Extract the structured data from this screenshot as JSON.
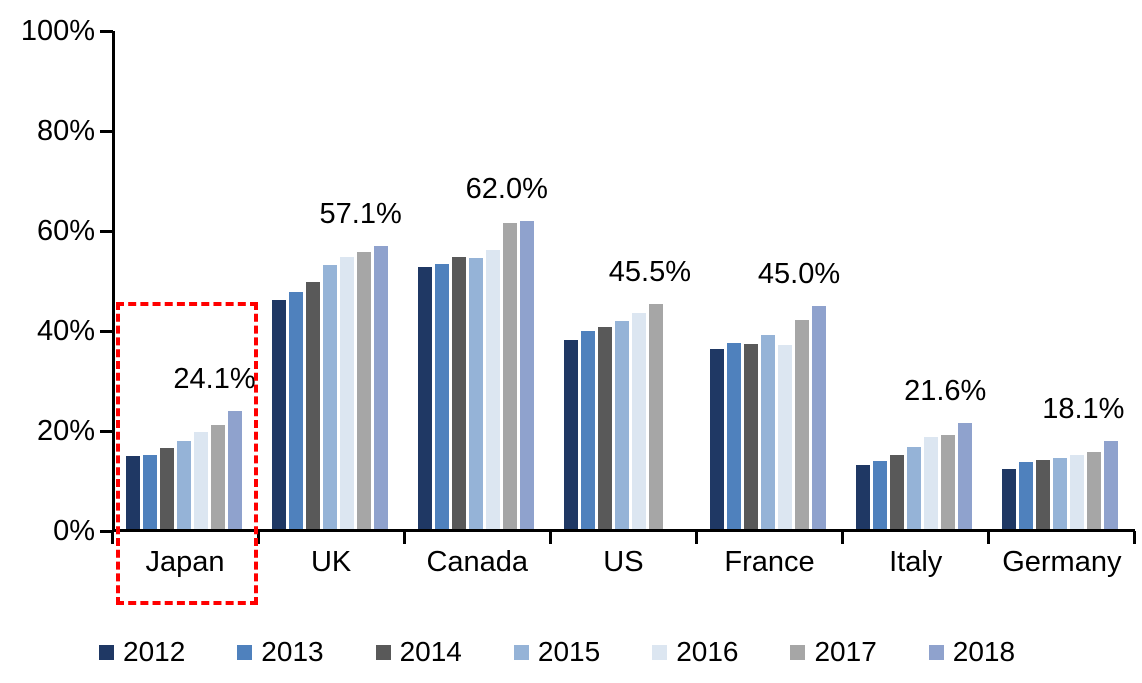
{
  "chart_data": {
    "type": "bar",
    "title": "",
    "xlabel": "",
    "ylabel": "",
    "grid": false,
    "legend_position": "bottom",
    "y_axis": {
      "min": 0,
      "max": 100,
      "tick_interval": 20,
      "tick_labels": [
        "0%",
        "20%",
        "40%",
        "60%",
        "80%",
        "100%"
      ]
    },
    "categories": [
      "Japan",
      "UK",
      "Canada",
      "US",
      "France",
      "Italy",
      "Germany"
    ],
    "series": [
      {
        "name": "2012",
        "color": "#1F3864",
        "values": [
          15.0,
          46.3,
          52.9,
          38.2,
          36.5,
          13.2,
          12.5
        ]
      },
      {
        "name": "2013",
        "color": "#4F81BD",
        "values": [
          15.2,
          47.8,
          53.4,
          40.0,
          37.7,
          14.0,
          13.9
        ]
      },
      {
        "name": "2014",
        "color": "#595959",
        "values": [
          16.7,
          49.9,
          54.9,
          40.9,
          37.5,
          15.2,
          14.3
        ]
      },
      {
        "name": "2015",
        "color": "#95B3D7",
        "values": [
          18.1,
          53.2,
          54.7,
          42.0,
          39.3,
          16.8,
          14.6
        ]
      },
      {
        "name": "2016",
        "color": "#DCE6F1",
        "values": [
          19.9,
          54.9,
          56.2,
          43.6,
          37.2,
          18.9,
          15.2
        ]
      },
      {
        "name": "2017",
        "color": "#A6A6A6",
        "values": [
          21.2,
          55.8,
          61.6,
          45.5,
          42.3,
          19.2,
          15.9
        ]
      },
      {
        "name": "2018",
        "color": "#8FA2CD",
        "values": [
          24.1,
          57.1,
          62.0,
          null,
          45.0,
          21.6,
          18.1
        ]
      }
    ],
    "data_labels": [
      {
        "category_index": 0,
        "series_name": "2018",
        "text": "24.1%",
        "dx": -20
      },
      {
        "category_index": 1,
        "series_name": "2018",
        "text": "57.1%",
        "dx": -20
      },
      {
        "category_index": 2,
        "series_name": "2018",
        "text": "62.0%",
        "dx": -20
      },
      {
        "category_index": 3,
        "series_name": "2017",
        "text": "45.5%",
        "dx": -6
      },
      {
        "category_index": 4,
        "series_name": "2018",
        "text": "45.0%",
        "dx": -20
      },
      {
        "category_index": 5,
        "series_name": "2018",
        "text": "21.6%",
        "dx": -20
      },
      {
        "category_index": 6,
        "series_name": "2018",
        "text": "18.1%",
        "dx": -28
      }
    ],
    "annotation": {
      "type": "dashed_box",
      "color": "#FF0000",
      "target_category": "Japan"
    }
  }
}
